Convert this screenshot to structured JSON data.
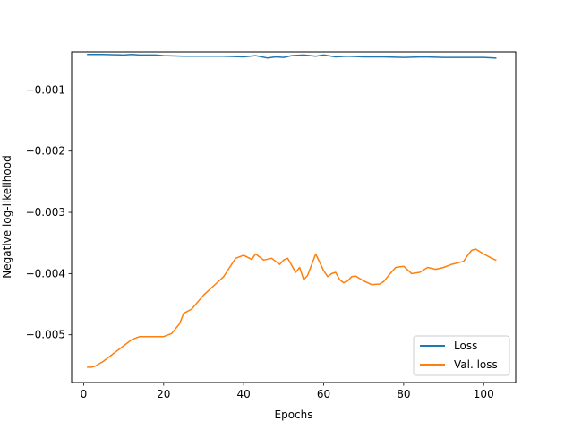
{
  "chart_data": {
    "type": "line",
    "xlabel": "Epochs",
    "ylabel": "Negative log-likelihood",
    "xlim": [
      -3,
      108
    ],
    "ylim": [
      -0.00578,
      -0.00038
    ],
    "xticks": [
      0,
      20,
      40,
      60,
      80,
      100
    ],
    "yticks": [
      -0.005,
      -0.004,
      -0.003,
      -0.002,
      -0.001
    ],
    "xtick_labels": [
      "0",
      "20",
      "40",
      "60",
      "80",
      "100"
    ],
    "ytick_labels": [
      "−0.005",
      "−0.004",
      "−0.003",
      "−0.002",
      "−0.001"
    ],
    "grid": false,
    "legend_position": "lower-right",
    "series": [
      {
        "name": "Loss",
        "color": "#1f77b4",
        "x": [
          1,
          5,
          10,
          12,
          14,
          16,
          18,
          20,
          25,
          30,
          35,
          40,
          43,
          46,
          48,
          50,
          52,
          55,
          58,
          60,
          63,
          66,
          70,
          75,
          80,
          85,
          90,
          95,
          100,
          103
        ],
        "y": [
          -0.00042,
          -0.00042,
          -0.00043,
          -0.00042,
          -0.00043,
          -0.00043,
          -0.00043,
          -0.00044,
          -0.00045,
          -0.00045,
          -0.00045,
          -0.00046,
          -0.00044,
          -0.00048,
          -0.00046,
          -0.00047,
          -0.00044,
          -0.00043,
          -0.00045,
          -0.00043,
          -0.00046,
          -0.00045,
          -0.00046,
          -0.00046,
          -0.00047,
          -0.00046,
          -0.00047,
          -0.00047,
          -0.00047,
          -0.00048
        ]
      },
      {
        "name": "Val. loss",
        "color": "#ff7f0e",
        "x": [
          1,
          2,
          3,
          5,
          8,
          10,
          12,
          14,
          16,
          18,
          20,
          22,
          24,
          25,
          27,
          30,
          33,
          35,
          37,
          38,
          40,
          42,
          43,
          45,
          47,
          49,
          50,
          51,
          53,
          54,
          55,
          56,
          58,
          60,
          61,
          62,
          63,
          64,
          65,
          66,
          67,
          68,
          70,
          72,
          74,
          75,
          76,
          78,
          80,
          82,
          84,
          86,
          88,
          90,
          92,
          95,
          96,
          97,
          98,
          100,
          102,
          103
        ],
        "y": [
          -0.00553,
          -0.00553,
          -0.00551,
          -0.00543,
          -0.00528,
          -0.00518,
          -0.00508,
          -0.00503,
          -0.00503,
          -0.00503,
          -0.00503,
          -0.00498,
          -0.00482,
          -0.00465,
          -0.00458,
          -0.00435,
          -0.00417,
          -0.00405,
          -0.00385,
          -0.00375,
          -0.0037,
          -0.00377,
          -0.00368,
          -0.00378,
          -0.00375,
          -0.00385,
          -0.00378,
          -0.00375,
          -0.00398,
          -0.0039,
          -0.0041,
          -0.00403,
          -0.00368,
          -0.00395,
          -0.00405,
          -0.004,
          -0.00398,
          -0.0041,
          -0.00415,
          -0.00412,
          -0.00405,
          -0.00404,
          -0.00412,
          -0.00418,
          -0.00417,
          -0.00413,
          -0.00405,
          -0.0039,
          -0.00388,
          -0.004,
          -0.00398,
          -0.0039,
          -0.00393,
          -0.0039,
          -0.00385,
          -0.0038,
          -0.0037,
          -0.00362,
          -0.0036,
          -0.00368,
          -0.00375,
          -0.00378
        ]
      }
    ]
  }
}
